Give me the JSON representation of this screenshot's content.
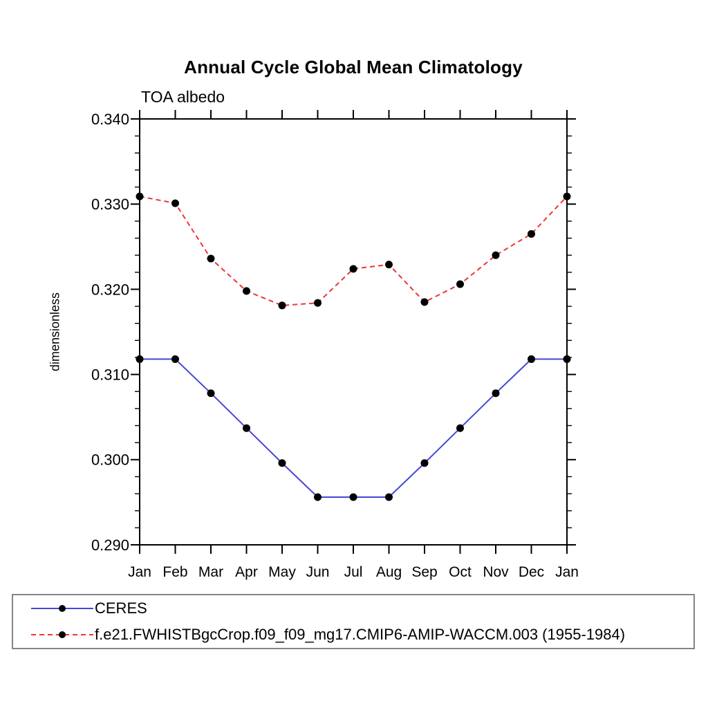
{
  "page": {
    "background": "#ffffff"
  },
  "chart_data": {
    "type": "line",
    "title": "Annual Cycle Global Mean Climatology",
    "subtitle": "TOA albedo",
    "ylabel": "dimensionless",
    "xlabel": "",
    "categories": [
      "Jan",
      "Feb",
      "Mar",
      "Apr",
      "May",
      "Jun",
      "Jul",
      "Aug",
      "Sep",
      "Oct",
      "Nov",
      "Dec",
      "Jan"
    ],
    "ylim": [
      0.29,
      0.34
    ],
    "ytick_labels": [
      "0.290",
      "0.300",
      "0.310",
      "0.320",
      "0.330",
      "0.340"
    ],
    "ytick_step": 0.01,
    "ytick_minor_step": 0.002,
    "grid": false,
    "legend_position": "bottom-box",
    "axis_color": "#000000",
    "marker_color": "#000000",
    "series": [
      {
        "name": "CERES",
        "color": "#4545d9",
        "line_style": "solid",
        "marker": "circle",
        "values": [
          0.3118,
          0.3118,
          0.3078,
          0.3037,
          0.2996,
          0.2956,
          0.2956,
          0.2956,
          0.2996,
          0.3037,
          0.3078,
          0.3118,
          0.3118
        ]
      },
      {
        "name": "f.e21.FWHISTBgcCrop.f09_f09_mg17.CMIP6-AMIP-WACCM.003 (1955-1984)",
        "color": "#ee3333",
        "line_style": "dashed",
        "marker": "circle",
        "values": [
          0.3309,
          0.3301,
          0.3236,
          0.3198,
          0.3181,
          0.3184,
          0.3224,
          0.3229,
          0.3185,
          0.3206,
          0.324,
          0.3265,
          0.3309
        ]
      }
    ]
  }
}
